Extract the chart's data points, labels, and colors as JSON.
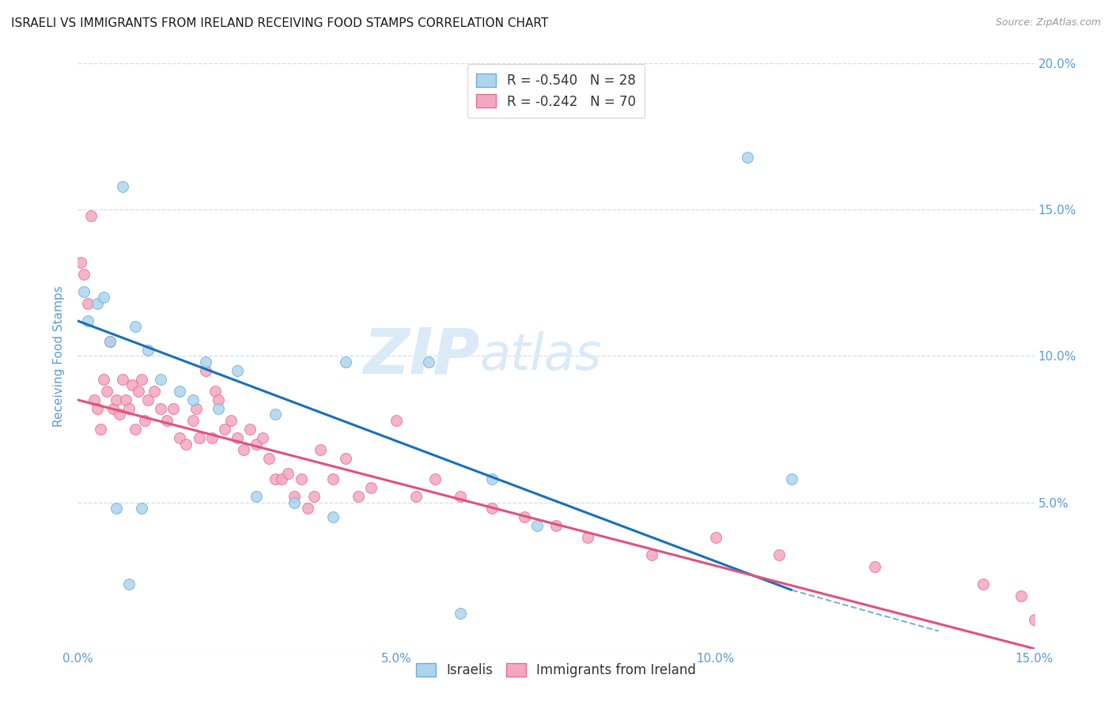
{
  "title": "ISRAELI VS IMMIGRANTS FROM IRELAND RECEIVING FOOD STAMPS CORRELATION CHART",
  "source": "Source: ZipAtlas.com",
  "ylabel": "Receiving Food Stamps",
  "xlim": [
    0.0,
    15.0
  ],
  "ylim": [
    0.0,
    20.0
  ],
  "xtick_labels": [
    "0.0%",
    "5.0%",
    "10.0%",
    "15.0%"
  ],
  "xtick_vals": [
    0.0,
    5.0,
    10.0,
    15.0
  ],
  "ytick_vals": [
    0.0,
    5.0,
    10.0,
    15.0,
    20.0
  ],
  "right_ytick_labels": [
    "5.0%",
    "10.0%",
    "15.0%",
    "20.0%"
  ],
  "right_ytick_vals": [
    5.0,
    10.0,
    15.0,
    20.0
  ],
  "legend_R_entries": [
    {
      "label": "R = -0.540   N = 28",
      "color": "#a8cde8"
    },
    {
      "label": "R = -0.242   N = 70",
      "color": "#f4a7c0"
    }
  ],
  "series1_name": "Israelis",
  "series2_name": "Immigrants from Ireland",
  "series1_color": "#aed4ed",
  "series2_color": "#f4a7c0",
  "series1_edge": "#6baed6",
  "series2_edge": "#e07090",
  "marker_size": 100,
  "blue_line_x0": 0.0,
  "blue_line_y0": 11.2,
  "blue_line_x1": 11.2,
  "blue_line_y1": 2.0,
  "blue_dash_x0": 11.2,
  "blue_dash_y0": 2.0,
  "blue_dash_x1": 13.5,
  "blue_dash_y1": 0.6,
  "pink_line_x0": 0.0,
  "pink_line_y0": 8.5,
  "pink_line_x1": 15.0,
  "pink_line_y1": 0.0,
  "israelis_x": [
    0.15,
    0.3,
    0.5,
    0.7,
    0.9,
    1.1,
    1.3,
    1.6,
    1.8,
    2.0,
    2.2,
    2.5,
    2.8,
    3.1,
    3.4,
    4.0,
    4.2,
    5.5,
    6.0,
    6.5,
    7.2,
    10.5,
    11.2,
    0.1,
    0.4,
    0.6,
    0.8,
    1.0
  ],
  "israelis_y": [
    11.2,
    11.8,
    10.5,
    15.8,
    11.0,
    10.2,
    9.2,
    8.8,
    8.5,
    9.8,
    8.2,
    9.5,
    5.2,
    8.0,
    5.0,
    4.5,
    9.8,
    9.8,
    1.2,
    5.8,
    4.2,
    16.8,
    5.8,
    12.2,
    12.0,
    4.8,
    2.2,
    4.8
  ],
  "ireland_x": [
    0.05,
    0.1,
    0.15,
    0.2,
    0.25,
    0.3,
    0.35,
    0.4,
    0.45,
    0.5,
    0.55,
    0.6,
    0.65,
    0.7,
    0.75,
    0.8,
    0.85,
    0.9,
    0.95,
    1.0,
    1.05,
    1.1,
    1.2,
    1.3,
    1.4,
    1.5,
    1.6,
    1.7,
    1.8,
    1.85,
    1.9,
    2.0,
    2.1,
    2.15,
    2.2,
    2.3,
    2.4,
    2.5,
    2.6,
    2.7,
    2.8,
    2.9,
    3.0,
    3.1,
    3.2,
    3.3,
    3.4,
    3.5,
    3.6,
    3.7,
    3.8,
    4.0,
    4.2,
    4.4,
    4.6,
    5.0,
    5.3,
    5.6,
    6.0,
    6.5,
    7.0,
    7.5,
    8.0,
    9.0,
    10.0,
    11.0,
    12.5,
    14.2,
    14.8,
    15.0
  ],
  "ireland_y": [
    13.2,
    12.8,
    11.8,
    14.8,
    8.5,
    8.2,
    7.5,
    9.2,
    8.8,
    10.5,
    8.2,
    8.5,
    8.0,
    9.2,
    8.5,
    8.2,
    9.0,
    7.5,
    8.8,
    9.2,
    7.8,
    8.5,
    8.8,
    8.2,
    7.8,
    8.2,
    7.2,
    7.0,
    7.8,
    8.2,
    7.2,
    9.5,
    7.2,
    8.8,
    8.5,
    7.5,
    7.8,
    7.2,
    6.8,
    7.5,
    7.0,
    7.2,
    6.5,
    5.8,
    5.8,
    6.0,
    5.2,
    5.8,
    4.8,
    5.2,
    6.8,
    5.8,
    6.5,
    5.2,
    5.5,
    7.8,
    5.2,
    5.8,
    5.2,
    4.8,
    4.5,
    4.2,
    3.8,
    3.2,
    3.8,
    3.2,
    2.8,
    2.2,
    1.8,
    1.0
  ],
  "title_fontsize": 11,
  "source_fontsize": 9,
  "axis_label_color": "#5b9bd5",
  "tick_color": "#5b9bd5",
  "background_color": "#ffffff",
  "grid_color": "#ccdff5",
  "watermark_zip": "ZIP",
  "watermark_atlas": "atlas",
  "watermark_color": "#daeaf7"
}
